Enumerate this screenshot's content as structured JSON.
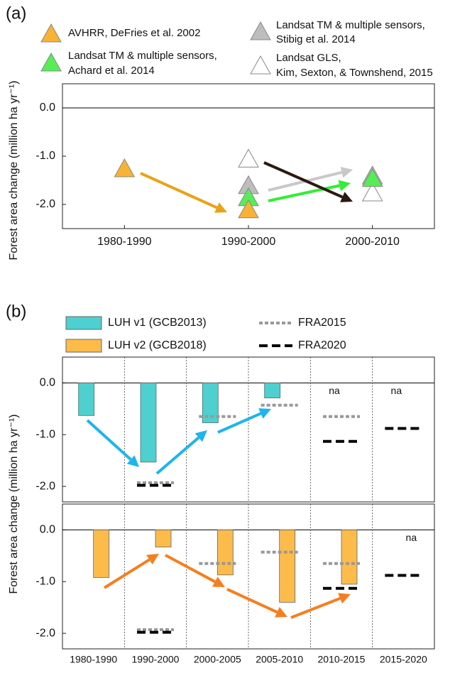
{
  "chart_data": [
    {
      "type": "scatter",
      "panel_label": "(a)",
      "y_label": "Forest area change  (million ha yr⁻¹)",
      "categories": [
        "1980-1990",
        "1990-2000",
        "2000-2010"
      ],
      "ylim": [
        -2.5,
        0.5
      ],
      "yticks": [
        {
          "value": 0,
          "label": "0.0"
        },
        {
          "value": -1,
          "label": "-1.0"
        },
        {
          "value": -2,
          "label": "-2.0"
        }
      ],
      "zero_line": true,
      "series": [
        {
          "name": [
            "AVHRR, DeFries et al. 2002"
          ],
          "color": "#f9b233",
          "values": [
            -1.25,
            -2.1,
            null
          ]
        },
        {
          "name": [
            "Landsat TM & multiple sensors,",
            "Achard et al. 2014"
          ],
          "color": "#55ee55",
          "values": [
            null,
            -1.85,
            -1.45
          ]
        },
        {
          "name": [
            "Landsat TM & multiple sensors,",
            "Stibig et al. 2014"
          ],
          "color": "#bdbdbd",
          "values": [
            null,
            -1.6,
            -1.4
          ]
        },
        {
          "name": [
            "Landsat GLS,",
            "Kim, Sexton, & Townshend, 2015"
          ],
          "color": "#ffffff",
          "values": [
            null,
            -1.05,
            -1.75
          ]
        }
      ]
    },
    {
      "type": "bar",
      "panel_label": "(b)",
      "y_label": "Forest area change  (million ha yr⁻¹)",
      "categories": [
        "1980-1990",
        "1990-2000",
        "2000-2005",
        "2005-2010",
        "2010-2015",
        "2015-2020"
      ],
      "ylim": [
        -2.3,
        0.5
      ],
      "yticks": [
        {
          "value": 0,
          "label": "0.0"
        },
        {
          "value": -1,
          "label": "-1.0"
        },
        {
          "value": -2,
          "label": "-2.0"
        }
      ],
      "zero_line": true,
      "series": [
        {
          "name": "LUH v1 (GCB2013)",
          "color": "#4dd0cf",
          "panel": "top",
          "values": [
            -0.63,
            -1.53,
            -0.77,
            -0.29,
            null,
            null
          ],
          "value_labels": [
            null,
            null,
            null,
            null,
            "na",
            "na"
          ]
        },
        {
          "name": "LUH v2 (GCB2018)",
          "color": "#fdbb4a",
          "panel": "bottom",
          "values": [
            -0.92,
            -0.33,
            -0.87,
            -1.4,
            -1.05,
            null
          ],
          "value_labels": [
            null,
            null,
            null,
            null,
            null,
            "na"
          ]
        },
        {
          "name": "FRA2015",
          "color": "#999999",
          "style": "dotted",
          "values": [
            null,
            -1.93,
            -0.65,
            -0.43,
            -0.65,
            null
          ]
        },
        {
          "name": "FRA2020",
          "color": "#000000",
          "style": "dashed",
          "values": [
            null,
            -1.98,
            null,
            null,
            -1.13,
            -0.88
          ]
        }
      ]
    }
  ]
}
